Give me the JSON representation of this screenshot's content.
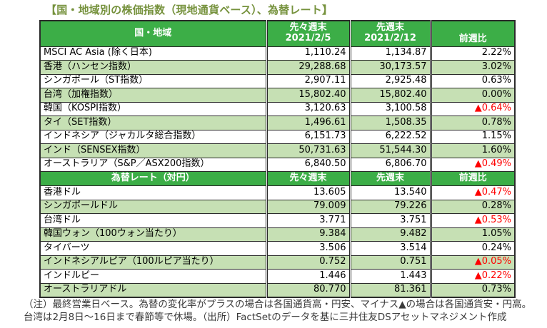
{
  "title": "【国・地域別の株価指数（現地通貨ベース）、為替レート】",
  "colors": {
    "title_green": "#76923D",
    "header_green": "#3CAE47",
    "row_green": "#C6E0B4",
    "negative_red": "#FF0000"
  },
  "table": {
    "sections": [
      {
        "id": "stock-indices",
        "header": {
          "label": "国・地域",
          "cols": [
            [
              "先々週末",
              "2021/2/5"
            ],
            [
              "先週末",
              "2021/2/12"
            ],
            [
              "前週比"
            ]
          ]
        },
        "rows": [
          {
            "name": "MSCI AC Asia (除く日本)",
            "prev2": "1,110.24",
            "prev1": "1,134.87",
            "wow": "2.22%"
          },
          {
            "name": "香港（ハンセン指数）",
            "prev2": "29,288.68",
            "prev1": "30,173.57",
            "wow": "3.02%"
          },
          {
            "name": "シンガポール（ST指数）",
            "prev2": "2,907.11",
            "prev1": "2,925.48",
            "wow": "0.63%"
          },
          {
            "name": "台湾（加権指数）",
            "prev2": "15,802.40",
            "prev1": "15,802.40",
            "wow": "0.00%"
          },
          {
            "name": "韓国（KOSPI指数）",
            "prev2": "3,120.63",
            "prev1": "3,100.58",
            "wow": "▲0.64%"
          },
          {
            "name": "タイ（SET指数）",
            "prev2": "1,496.61",
            "prev1": "1,508.35",
            "wow": "0.78%"
          },
          {
            "name": "インドネシア（ジャカルタ総合指数）",
            "prev2": "6,151.73",
            "prev1": "6,222.52",
            "wow": "1.15%"
          },
          {
            "name": "インド（SENSEX指数）",
            "prev2": "50,731.63",
            "prev1": "51,544.30",
            "wow": "1.60%"
          },
          {
            "name": "オーストラリア（S&P／ASX200指数）",
            "prev2": "6,840.50",
            "prev1": "6,806.70",
            "wow": "▲0.49%"
          }
        ]
      },
      {
        "id": "fx-rates",
        "header": {
          "label": "為替レート（対円）",
          "cols": [
            [
              "先々週末"
            ],
            [
              "先週末"
            ],
            [
              "前週比"
            ]
          ]
        },
        "rows": [
          {
            "name": "香港ドル",
            "prev2": "13.605",
            "prev1": "13.540",
            "wow": "▲0.47%"
          },
          {
            "name": "シンガポールドル",
            "prev2": "79.009",
            "prev1": "79.226",
            "wow": "0.28%"
          },
          {
            "name": "台湾ドル",
            "prev2": "3.771",
            "prev1": "3.751",
            "wow": "▲0.53%"
          },
          {
            "name": "韓国ウォン（100ウォン当たり）",
            "prev2": "9.384",
            "prev1": "9.482",
            "wow": "1.05%"
          },
          {
            "name": "タイバーツ",
            "prev2": "3.506",
            "prev1": "3.514",
            "wow": "0.24%"
          },
          {
            "name": "インドネシアルピア（100ルピア当たり）",
            "prev2": "0.752",
            "prev1": "0.751",
            "wow": "▲0.05%"
          },
          {
            "name": "インドルピー",
            "prev2": "1.446",
            "prev1": "1.443",
            "wow": "▲0.22%"
          },
          {
            "name": "オーストラリアドル",
            "prev2": "80.770",
            "prev1": "81.361",
            "wow": "0.73%"
          }
        ]
      }
    ]
  },
  "notes": [
    "（注）最終営業日ベース。為替の変化率がプラスの場合は各国通貨高・円安、マイナス▲の場合は各国通貨安・円高。",
    "台湾は2月8日～16日まで春節等で休場。（出所）FactSetのデータを基に三井住友DSアセットマネジメント作成"
  ]
}
